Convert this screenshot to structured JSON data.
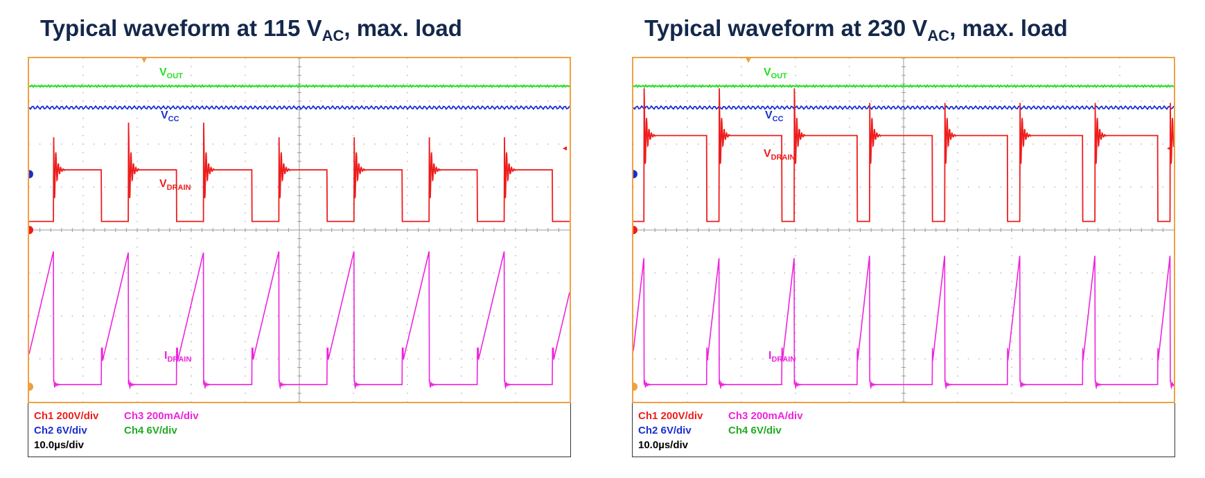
{
  "chart_data": [
    {
      "type": "line",
      "title_main": "Typical waveform at 115 V",
      "title_sub": "AC",
      "title_tail": ", max. load",
      "series": [
        {
          "name": "V",
          "sub": "OUT",
          "color": "#22e022"
        },
        {
          "name": "V",
          "sub": "CC",
          "color": "#1a2fd0"
        },
        {
          "name": "V",
          "sub": "DRAIN",
          "color": "#ee1c1c"
        },
        {
          "name": "I",
          "sub": "DRAIN",
          "color": "#ee22dd"
        }
      ],
      "time_per_div_us": 10.0,
      "switching": {
        "period_us": 13.9,
        "on_time_us": 5.0,
        "first_turnoff_us": 4.5,
        "drain_high_level_div": 5.4,
        "drain_low_level_div": 4.2,
        "current_peak_div": 3.5,
        "current_valley_div": 0.4
      },
      "scales": [
        {
          "ch": "Ch1",
          "text": "Ch1 200V/div",
          "color": "#ee1c1c"
        },
        {
          "ch": "Ch3",
          "text": "Ch3 200mA/div",
          "color": "#ee22dd"
        },
        {
          "ch": "Ch2",
          "text": "Ch2 6V/div",
          "color": "#1a2fd0"
        },
        {
          "ch": "Ch4",
          "text": "Ch4 6V/div",
          "color": "#22aa22"
        },
        {
          "ch": "time",
          "text": "10.0µs/div",
          "color": "#000000"
        }
      ]
    },
    {
      "type": "line",
      "title_main": "Typical waveform at 230 V",
      "title_sub": "AC",
      "title_tail": ", max. load",
      "series": [
        {
          "name": "V",
          "sub": "OUT",
          "color": "#22e022"
        },
        {
          "name": "V",
          "sub": "CC",
          "color": "#1a2fd0"
        },
        {
          "name": "V",
          "sub": "DRAIN",
          "color": "#ee1c1c"
        },
        {
          "name": "I",
          "sub": "DRAIN",
          "color": "#ee22dd"
        }
      ],
      "time_per_div_us": 10.0,
      "switching": {
        "period_us": 13.9,
        "on_time_us": 2.3,
        "first_turnoff_us": 2.0,
        "drain_high_level_div": 6.2,
        "drain_low_level_div": 4.2,
        "current_peak_div": 3.4,
        "current_valley_div": 0.4
      },
      "scales": [
        {
          "ch": "Ch1",
          "text": "Ch1 200V/div",
          "color": "#ee1c1c"
        },
        {
          "ch": "Ch3",
          "text": "Ch3 200mA/div",
          "color": "#ee22dd"
        },
        {
          "ch": "Ch2",
          "text": "Ch2 6V/div",
          "color": "#1a2fd0"
        },
        {
          "ch": "Ch4",
          "text": "Ch4 6V/div",
          "color": "#22aa22"
        },
        {
          "ch": "time",
          "text": "10.0µs/div",
          "color": "#000000"
        }
      ]
    }
  ]
}
